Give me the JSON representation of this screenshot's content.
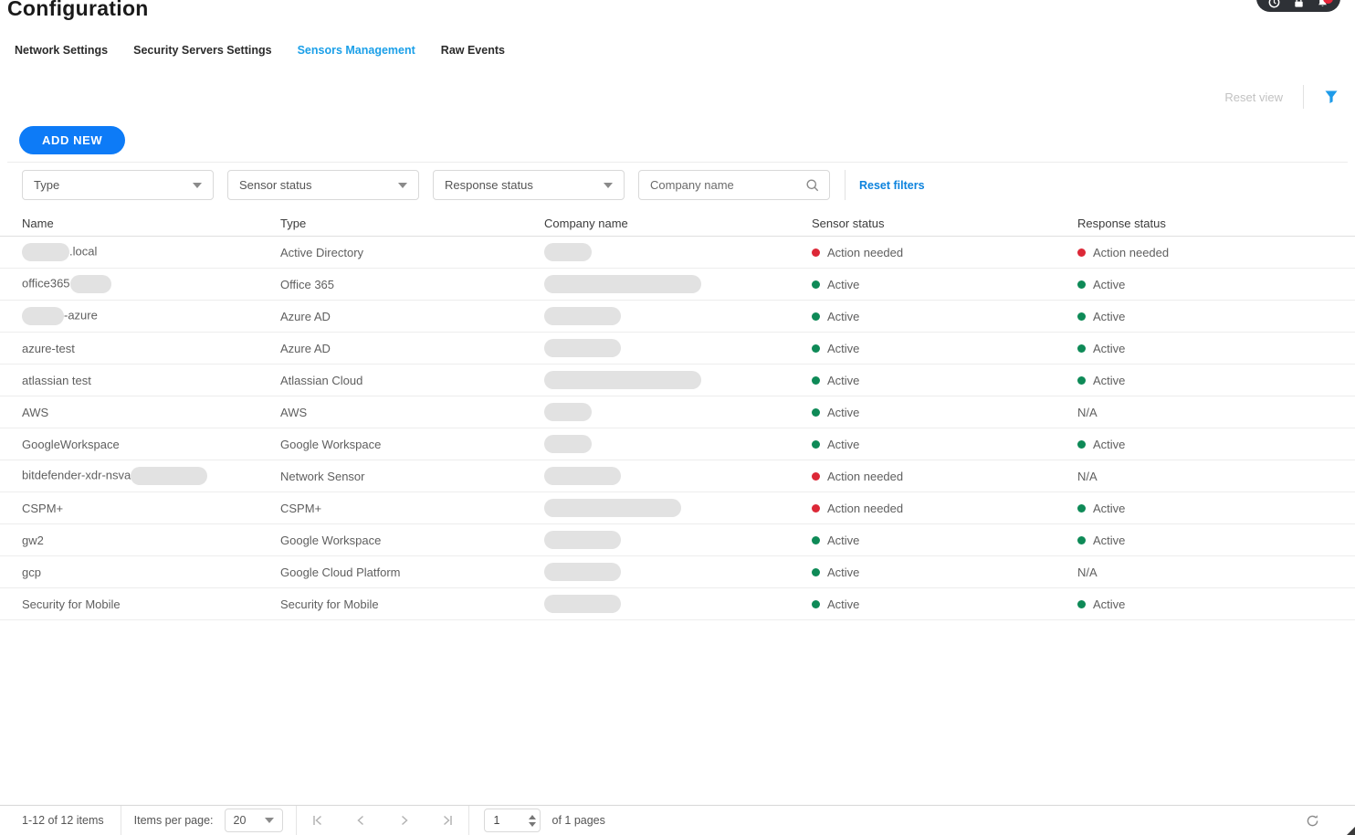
{
  "page": {
    "title": "Configuration"
  },
  "topbar": {
    "icons": [
      "clock-icon",
      "lock-icon",
      "bell-icon"
    ],
    "notification_badge_color": "#e8253a",
    "pill_color": "#2e3136"
  },
  "tabs": [
    {
      "label": "Network Settings",
      "active": false
    },
    {
      "label": "Security Servers Settings",
      "active": false
    },
    {
      "label": "Sensors Management",
      "active": true
    },
    {
      "label": "Raw Events",
      "active": false
    }
  ],
  "view_controls": {
    "reset_view_label": "Reset view"
  },
  "toolbar": {
    "add_new_label": "ADD NEW"
  },
  "filters": {
    "type_placeholder": "Type",
    "sensor_status_placeholder": "Sensor status",
    "response_status_placeholder": "Response status",
    "company_name_placeholder": "Company name",
    "reset_filters_label": "Reset filters"
  },
  "table": {
    "columns": [
      "Name",
      "Type",
      "Company name",
      "Sensor status",
      "Response status"
    ],
    "rows": [
      {
        "name_pre": "",
        "name_redact_width": 52,
        "name_post": ".local",
        "type": "Active Directory",
        "company_redact_width": 52,
        "sensor_status": "Action needed",
        "response_status": "Action needed"
      },
      {
        "name_pre": "office365",
        "name_redact_width": 45,
        "name_post": "",
        "type": "Office 365",
        "company_redact_width": 172,
        "sensor_status": "Active",
        "response_status": "Active"
      },
      {
        "name_pre": "",
        "name_redact_width": 46,
        "name_post": "-azure",
        "type": "Azure AD",
        "company_redact_width": 84,
        "sensor_status": "Active",
        "response_status": "Active"
      },
      {
        "name_pre": "azure-test",
        "name_redact_width": 0,
        "name_post": "",
        "type": "Azure AD",
        "company_redact_width": 84,
        "sensor_status": "Active",
        "response_status": "Active"
      },
      {
        "name_pre": "atlassian test",
        "name_redact_width": 0,
        "name_post": "",
        "type": "Atlassian Cloud",
        "company_redact_width": 172,
        "sensor_status": "Active",
        "response_status": "Active"
      },
      {
        "name_pre": "AWS",
        "name_redact_width": 0,
        "name_post": "",
        "type": "AWS",
        "company_redact_width": 52,
        "sensor_status": "Active",
        "response_status": "N/A"
      },
      {
        "name_pre": "GoogleWorkspace",
        "name_redact_width": 0,
        "name_post": "",
        "type": "Google Workspace",
        "company_redact_width": 52,
        "sensor_status": "Active",
        "response_status": "Active"
      },
      {
        "name_pre": "bitdefender-xdr-nsva",
        "name_redact_width": 84,
        "name_post": "",
        "type": "Network Sensor",
        "company_redact_width": 84,
        "sensor_status": "Action needed",
        "response_status": "N/A"
      },
      {
        "name_pre": "CSPM+",
        "name_redact_width": 0,
        "name_post": "",
        "type": "CSPM+",
        "company_redact_width": 150,
        "sensor_status": "Action needed",
        "response_status": "Active"
      },
      {
        "name_pre": "gw2",
        "name_redact_width": 0,
        "name_post": "",
        "type": "Google Workspace",
        "company_redact_width": 84,
        "sensor_status": "Active",
        "response_status": "Active"
      },
      {
        "name_pre": "gcp",
        "name_redact_width": 0,
        "name_post": "",
        "type": "Google Cloud Platform",
        "company_redact_width": 84,
        "sensor_status": "Active",
        "response_status": "N/A"
      },
      {
        "name_pre": "Security for Mobile",
        "name_redact_width": 0,
        "name_post": "",
        "type": "Security for Mobile",
        "company_redact_width": 84,
        "sensor_status": "Active",
        "response_status": "Active"
      }
    ]
  },
  "status_colors": {
    "Active": "#0e8a57",
    "Action needed": "#dc2837"
  },
  "pagination": {
    "range_label": "1-12 of 12 items",
    "items_per_page_label": "Items per page:",
    "items_per_page_value": "20",
    "page_value": "1",
    "pages_label": "of 1 pages"
  }
}
